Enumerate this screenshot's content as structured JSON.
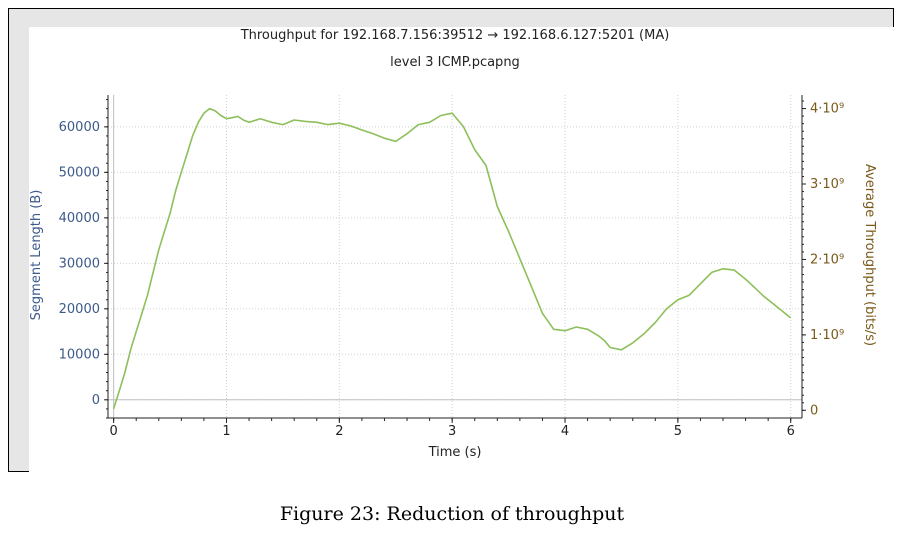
{
  "caption": "Figure 23: Reduction of throughput",
  "chart_data": {
    "type": "line",
    "title": "Throughput for 192.168.7.156:39512 → 192.168.6.127:5201 (MA)",
    "subtitle": "level 3 ICMP.pcapng",
    "xlabel": "Time (s)",
    "ylabel": "Segment Length (B)",
    "y2label": "Average Throughput (bits/s)",
    "xlim": [
      -0.05,
      6.1
    ],
    "ylim": [
      -4000,
      67000
    ],
    "y2lim": [
      -102000000,
      4180000000
    ],
    "x_ticks": [
      "0",
      "1",
      "2",
      "3",
      "4",
      "5",
      "6"
    ],
    "y_ticks": [
      "0",
      "10000",
      "20000",
      "30000",
      "40000",
      "50000",
      "60000"
    ],
    "y2_ticks": [
      "0",
      "1·10⁹",
      "2·10⁹",
      "3·10⁹",
      "4·10⁹"
    ],
    "grid": true,
    "colors": {
      "series": "#8dbf5a",
      "left_axis": "#3d5a8a",
      "right_axis": "#7a5a1a",
      "zero_line": "#c0c0c0"
    },
    "series": [
      {
        "x": [
          0,
          0.05,
          0.1,
          0.15,
          0.2,
          0.25,
          0.3,
          0.35,
          0.4,
          0.45,
          0.5,
          0.55,
          0.6,
          0.65,
          0.7,
          0.75,
          0.8,
          0.85,
          0.9,
          0.95,
          1.0,
          1.05,
          1.1,
          1.15,
          1.2,
          1.3,
          1.4,
          1.5,
          1.6,
          1.7,
          1.8,
          1.9,
          2.0,
          2.1,
          2.2,
          2.3,
          2.4,
          2.5,
          2.6,
          2.7,
          2.8,
          2.9,
          3.0,
          3.1,
          3.2,
          3.3,
          3.35,
          3.4,
          3.5,
          3.6,
          3.7,
          3.8,
          3.9,
          4.0,
          4.1,
          4.2,
          4.3,
          4.35,
          4.4,
          4.5,
          4.6,
          4.7,
          4.8,
          4.9,
          5.0,
          5.1,
          5.2,
          5.3,
          5.4,
          5.5,
          5.6,
          5.7,
          5.75,
          5.8,
          5.85,
          5.9,
          5.95,
          6.0
        ],
        "y": [
          -2000,
          2000,
          6000,
          11000,
          15000,
          19000,
          23000,
          28000,
          33000,
          37000,
          41000,
          46000,
          50000,
          54000,
          58000,
          61000,
          63000,
          64000,
          63500,
          62500,
          61800,
          62000,
          62300,
          61500,
          61000,
          61800,
          61000,
          60500,
          61500,
          61200,
          61000,
          60500,
          60800,
          60200,
          59300,
          58500,
          57500,
          56800,
          58500,
          60500,
          61000,
          62500,
          63000,
          60000,
          55000,
          51500,
          47000,
          42500,
          37000,
          31000,
          25000,
          19000,
          15500,
          15200,
          16000,
          15500,
          14000,
          13000,
          11500,
          11000,
          12500,
          14500,
          17000,
          20000,
          22000,
          23000,
          25500,
          28000,
          28800,
          28500,
          26500,
          24200,
          23000,
          22000,
          21000,
          20000,
          19000,
          18000
        ]
      }
    ]
  }
}
